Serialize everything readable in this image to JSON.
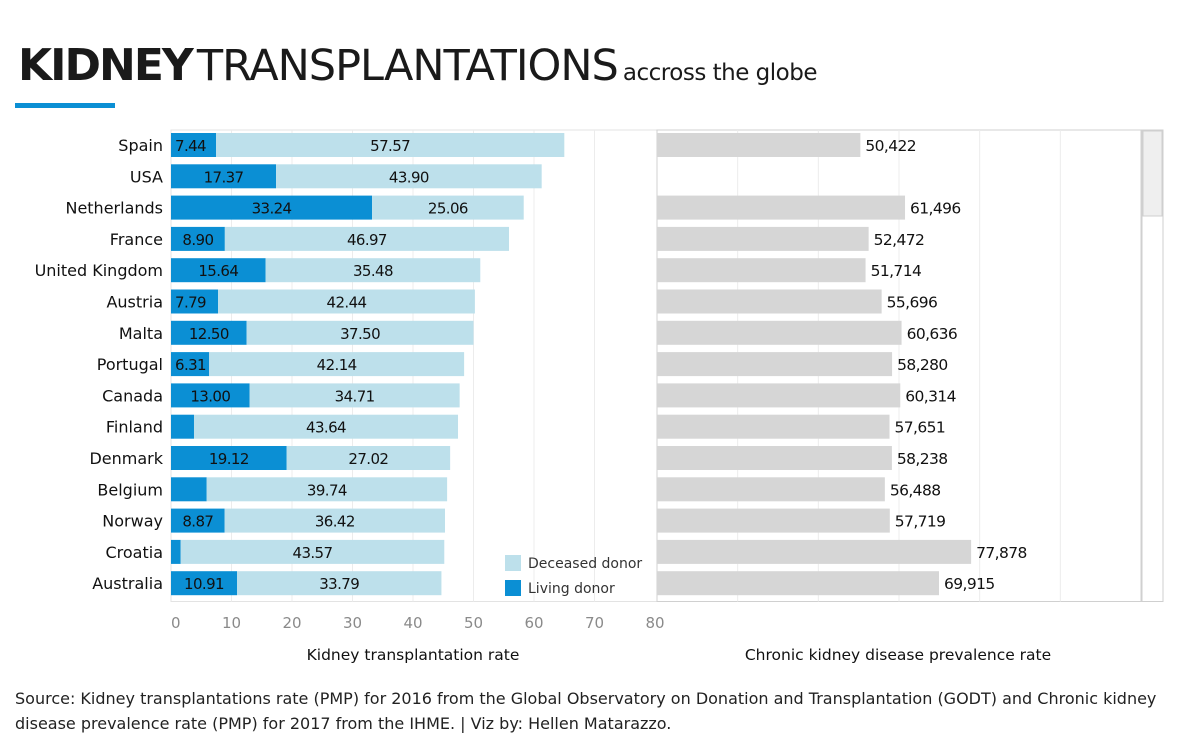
{
  "title": {
    "bold": "KIDNEY",
    "light": "TRANSPLANTATIONS",
    "sub": "accross the globe"
  },
  "source": "Source: Kidney transplantations rate (PMP) for 2016 from the Global Observatory on Donation and Transplantation (GODT) and Chronic kidney disease prevalence rate (PMP) for 2017 from the IHME. | Viz by: Hellen Matarazzo.",
  "colors": {
    "living": "#0b8fd4",
    "deceased": "#bde0eb",
    "prevalence": "#d6d6d6",
    "accent": "#0b8fd4"
  },
  "chart_data": [
    {
      "type": "bar",
      "orientation": "horizontal",
      "stacked": true,
      "xlabel": "Kidney transplantation rate",
      "xlim": [
        0,
        80
      ],
      "xticks": [
        0,
        10,
        20,
        30,
        40,
        50,
        60,
        70,
        80
      ],
      "grid": true,
      "legend_position": "bottom-right",
      "categories": [
        "Spain",
        "USA",
        "Netherlands",
        "France",
        "United Kingdom",
        "Austria",
        "Malta",
        "Portugal",
        "Canada",
        "Finland",
        "Denmark",
        "Belgium",
        "Norway",
        "Croatia",
        "Australia"
      ],
      "series": [
        {
          "name": "Living donor",
          "values": [
            7.44,
            17.37,
            33.24,
            8.9,
            15.64,
            7.79,
            12.5,
            6.31,
            13.0,
            3.8,
            19.12,
            5.9,
            8.87,
            1.6,
            10.91
          ],
          "labels": [
            "7.44",
            "17.37",
            "33.24",
            "8.90",
            "15.64",
            "7.79",
            "12.50",
            "6.31",
            "13.00",
            "",
            "19.12",
            "",
            "8.87",
            "",
            "10.91"
          ]
        },
        {
          "name": "Deceased donor",
          "values": [
            57.57,
            43.9,
            25.06,
            46.97,
            35.48,
            42.44,
            37.5,
            42.14,
            34.71,
            43.64,
            27.02,
            39.74,
            36.42,
            43.57,
            33.79
          ],
          "labels": [
            "57.57",
            "43.90",
            "25.06",
            "46.97",
            "35.48",
            "42.44",
            "37.50",
            "42.14",
            "34.71",
            "43.64",
            "27.02",
            "39.74",
            "36.42",
            "43.57",
            "33.79"
          ]
        }
      ]
    },
    {
      "type": "bar",
      "orientation": "horizontal",
      "xlabel": "Chronic kidney disease prevalence rate",
      "xlim": [
        0,
        120000
      ],
      "grid": true,
      "categories": [
        "Spain",
        "USA",
        "Netherlands",
        "France",
        "United Kingdom",
        "Austria",
        "Malta",
        "Portugal",
        "Canada",
        "Finland",
        "Denmark",
        "Belgium",
        "Norway",
        "Croatia",
        "Australia"
      ],
      "values": [
        50422,
        null,
        61496,
        52472,
        51714,
        55696,
        60636,
        58280,
        60314,
        57651,
        58238,
        56488,
        57719,
        77878,
        69915
      ],
      "labels": [
        "50,422",
        "",
        "61,496",
        "52,472",
        "51,714",
        "55,696",
        "60,636",
        "58,280",
        "60,314",
        "57,651",
        "58,238",
        "56,488",
        "57,719",
        "77,878",
        "69,915"
      ]
    }
  ]
}
